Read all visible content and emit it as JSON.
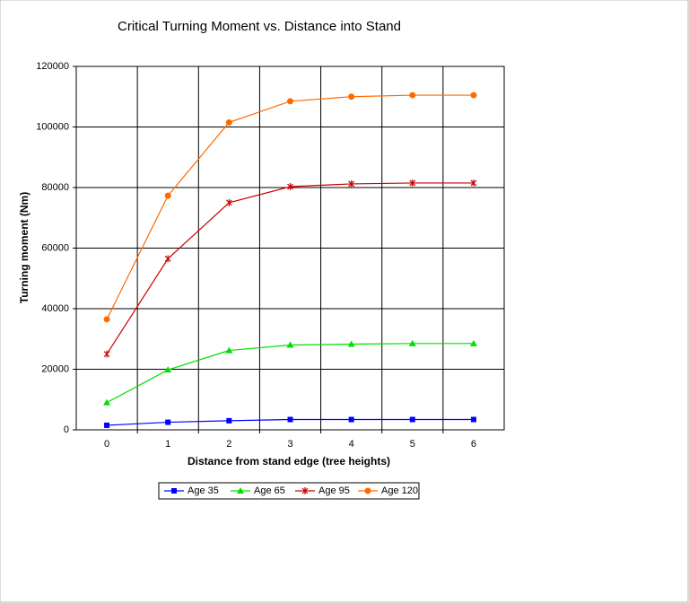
{
  "chart_data": {
    "type": "line",
    "title": "Critical Turning Moment vs. Distance into Stand",
    "x_label": "Distance from stand edge (tree heights)",
    "y_label": "Turning moment (Nm)",
    "categories": [
      "0",
      "1",
      "2",
      "3",
      "4",
      "5",
      "6"
    ],
    "series": [
      {
        "name": "Age 35",
        "color": "#0000ff",
        "marker": "square",
        "values": [
          1500,
          2500,
          3000,
          3400,
          3400,
          3400,
          3400
        ]
      },
      {
        "name": "Age 65",
        "color": "#00e000",
        "marker": "triangle",
        "values": [
          9000,
          19800,
          26200,
          28000,
          28300,
          28500,
          28500
        ]
      },
      {
        "name": "Age 95",
        "color": "#cc0000",
        "marker": "star",
        "values": [
          25000,
          56500,
          75000,
          80300,
          81200,
          81500,
          81500
        ]
      },
      {
        "name": "Age 120",
        "color": "#ff6a00",
        "marker": "circle",
        "values": [
          36500,
          77300,
          101500,
          108500,
          110000,
          110500,
          110500
        ]
      }
    ],
    "ylim": [
      0,
      120000
    ],
    "yticks": [
      0,
      20000,
      40000,
      60000,
      80000,
      100000,
      120000
    ],
    "grid": true,
    "legend": "bottom"
  }
}
